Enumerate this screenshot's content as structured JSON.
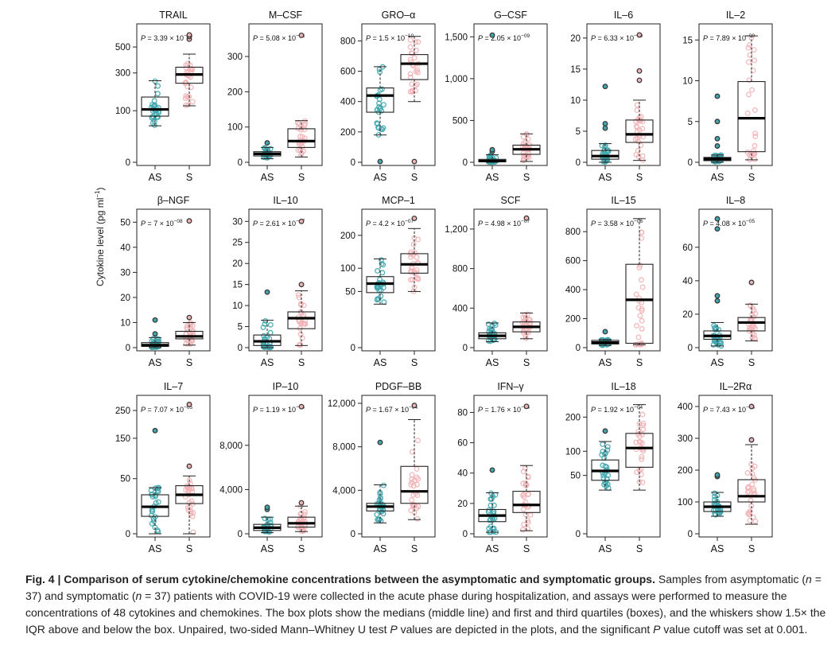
{
  "figure": {
    "ylabel": "Cytokine level (pg ml",
    "ylabel_sup": "−1",
    "ylabel_close": ")",
    "groups": [
      "AS",
      "S"
    ],
    "colors": {
      "AS": "#3ea6ad",
      "S": "#f2b3b6"
    },
    "caption": {
      "fig_label": "Fig. 4 | Comparison of serum cytokine/chemokine concentrations between the asymptomatic and symptomatic groups.",
      "part1": " Samples from asymptomatic (",
      "n_as": "n",
      "eq_as": " = 37) and symptomatic (",
      "n_s": "n",
      "eq_s": " = 37) patients with COVID-19 were collected in the acute phase during hospitalization, and assays were performed to measure the concentrations of 48 cytokines and chemokines. The box plots show the medians (middle line) and first and third quartiles (boxes), and the whiskers show 1.5× the IQR above and below the box. Unpaired, two-sided Mann–Whitney U test ",
      "p1": "P",
      "part2": " values are depicted in the plots, and the significant ",
      "p2": "P",
      "part3": " value cutoff was set at 0.001."
    }
  },
  "chart_data": [
    {
      "type": "box",
      "title": "TRAIL",
      "pval": "P = 3.39 × 10",
      "pexp": "−14",
      "scale": "sqrt",
      "ylim": [
        0,
        640
      ],
      "yticks": [
        0,
        100,
        300,
        500
      ],
      "ytick_labels": [
        "0",
        "100",
        "300",
        "500"
      ],
      "AS": {
        "q1": 80,
        "median": 105,
        "q3": 160,
        "wlo": 50,
        "whi": 250,
        "out": []
      },
      "S": {
        "q1": 235,
        "median": 290,
        "q3": 340,
        "wlo": 120,
        "whi": 440,
        "out": [
          570,
          595,
          610
        ]
      }
    },
    {
      "type": "box",
      "title": "M–CSF",
      "pval": "P = 5.08 × 10",
      "pexp": "−13",
      "scale": "linear",
      "ylim": [
        0,
        370
      ],
      "yticks": [
        0,
        100,
        200,
        300
      ],
      "ytick_labels": [
        "0",
        "100",
        "200",
        "300"
      ],
      "AS": {
        "q1": 18,
        "median": 24,
        "q3": 30,
        "wlo": 10,
        "whi": 42,
        "out": [
          55
        ]
      },
      "S": {
        "q1": 42,
        "median": 60,
        "q3": 95,
        "wlo": 15,
        "whi": 118,
        "out": [
          360
        ]
      }
    },
    {
      "type": "box",
      "title": "GRO–α",
      "pval": "P = 1.5 × 10",
      "pexp": "−10",
      "scale": "linear",
      "ylim": [
        0,
        860
      ],
      "yticks": [
        0,
        200,
        400,
        600,
        800
      ],
      "ytick_labels": [
        "0",
        "200",
        "400",
        "600",
        "800"
      ],
      "AS": {
        "q1": 330,
        "median": 440,
        "q3": 490,
        "wlo": 180,
        "whi": 630,
        "out": [
          5
        ]
      },
      "S": {
        "q1": 545,
        "median": 650,
        "q3": 710,
        "wlo": 400,
        "whi": 830,
        "out": [
          5
        ]
      }
    },
    {
      "type": "box",
      "title": "G–CSF",
      "pval": "P = 2.05 × 10",
      "pexp": "−09",
      "scale": "linear",
      "ylim": [
        0,
        1560
      ],
      "yticks": [
        0,
        500,
        1000,
        1500
      ],
      "ytick_labels": [
        "0",
        "500",
        "1,000",
        "1,500"
      ],
      "AS": {
        "q1": 5,
        "median": 15,
        "q3": 35,
        "wlo": 0,
        "whi": 90,
        "out": [
          130,
          150,
          1520
        ]
      },
      "S": {
        "q1": 95,
        "median": 155,
        "q3": 205,
        "wlo": 10,
        "whi": 340,
        "out": []
      }
    },
    {
      "type": "box",
      "title": "IL–6",
      "pval": "P = 6.33 × 10",
      "pexp": "−09",
      "scale": "linear",
      "ylim": [
        0,
        21
      ],
      "yticks": [
        0,
        5,
        10,
        15,
        20
      ],
      "ytick_labels": [
        "0",
        "5",
        "10",
        "15",
        "20"
      ],
      "AS": {
        "q1": 0.5,
        "median": 1.0,
        "q3": 1.9,
        "wlo": 0,
        "whi": 3.0,
        "out": [
          5.5,
          6.2,
          12.2
        ]
      },
      "S": {
        "q1": 3.2,
        "median": 4.5,
        "q3": 6.8,
        "wlo": 0.3,
        "whi": 10,
        "out": [
          13.2,
          14.7,
          20.5
        ]
      }
    },
    {
      "type": "box",
      "title": "IL–2",
      "pval": "P = 7.89 × 10",
      "pexp": "−09",
      "scale": "linear",
      "ylim": [
        0,
        16
      ],
      "yticks": [
        0,
        5,
        10,
        15
      ],
      "ytick_labels": [
        "0",
        "5",
        "10",
        "15"
      ],
      "AS": {
        "q1": 0.2,
        "median": 0.4,
        "q3": 0.6,
        "wlo": 0,
        "whi": 0.9,
        "out": [
          2.0,
          2.9,
          5.0,
          8.1
        ]
      },
      "S": {
        "q1": 1.3,
        "median": 5.4,
        "q3": 9.9,
        "wlo": 0.3,
        "whi": 15.5,
        "out": []
      }
    },
    {
      "type": "box",
      "title": "β–NGF",
      "pval": "P = 7 × 10",
      "pexp": "−08",
      "scale": "linear",
      "ylim": [
        0,
        52
      ],
      "yticks": [
        0,
        10,
        20,
        30,
        40,
        50
      ],
      "ytick_labels": [
        "0",
        "10",
        "20",
        "30",
        "40",
        "50"
      ],
      "AS": {
        "q1": 0.5,
        "median": 1,
        "q3": 2,
        "wlo": 0,
        "whi": 4,
        "out": [
          5.5,
          11
        ]
      },
      "S": {
        "q1": 3.5,
        "median": 4.5,
        "q3": 6.5,
        "wlo": 1,
        "whi": 10,
        "out": [
          12,
          50.5
        ]
      }
    },
    {
      "type": "box",
      "title": "IL–10",
      "pval": "P = 2.61 × 10",
      "pexp": "−07",
      "scale": "linear",
      "ylim": [
        0,
        31
      ],
      "yticks": [
        0,
        5,
        10,
        15,
        20,
        25,
        30
      ],
      "ytick_labels": [
        "0",
        "5",
        "10",
        "15",
        "20",
        "25",
        "30"
      ],
      "AS": {
        "q1": 0.5,
        "median": 1.5,
        "q3": 3,
        "wlo": 0,
        "whi": 6.5,
        "out": [
          13.2
        ]
      },
      "S": {
        "q1": 4.5,
        "median": 7,
        "q3": 8.5,
        "wlo": 0.5,
        "whi": 13.5,
        "out": [
          15,
          30
        ]
      }
    },
    {
      "type": "box",
      "title": "MCP–1",
      "pval": "P = 4.2 × 10",
      "pexp": "−07",
      "scale": "sqrt",
      "ylim": [
        0,
        270
      ],
      "yticks": [
        0,
        50,
        100,
        200
      ],
      "ytick_labels": [
        "0",
        "50",
        "100",
        "200"
      ],
      "AS": {
        "q1": 48,
        "median": 65,
        "q3": 80,
        "wlo": 30,
        "whi": 125,
        "out": []
      },
      "S": {
        "q1": 88,
        "median": 110,
        "q3": 140,
        "wlo": 50,
        "whi": 225,
        "out": [
          265
        ]
      }
    },
    {
      "type": "box",
      "title": "SCF",
      "pval": "P = 4.98 × 10",
      "pexp": "−07",
      "scale": "linear",
      "ylim": [
        0,
        1320
      ],
      "yticks": [
        0,
        400,
        800,
        1200
      ],
      "ytick_labels": [
        "0",
        "400",
        "800",
        "1,200"
      ],
      "AS": {
        "q1": 90,
        "median": 120,
        "q3": 150,
        "wlo": 60,
        "whi": 250,
        "out": []
      },
      "S": {
        "q1": 160,
        "median": 210,
        "q3": 260,
        "wlo": 90,
        "whi": 350,
        "out": [
          1310
        ]
      }
    },
    {
      "type": "box",
      "title": "IL–15",
      "pval": "P = 3.58 × 10",
      "pexp": "−06",
      "scale": "linear",
      "ylim": [
        0,
        900
      ],
      "yticks": [
        0,
        200,
        400,
        600,
        800
      ],
      "ytick_labels": [
        "0",
        "200",
        "400",
        "600",
        "800"
      ],
      "AS": {
        "q1": 25,
        "median": 35,
        "q3": 50,
        "wlo": 15,
        "whi": 55,
        "out": [
          110
        ]
      },
      "S": {
        "q1": 30,
        "median": 330,
        "q3": 575,
        "wlo": 20,
        "whi": 890,
        "out": []
      }
    },
    {
      "type": "box",
      "title": "IL–8",
      "pval": "P = 4.08 × 10",
      "pexp": "−05",
      "scale": "linear",
      "ylim": [
        0,
        78
      ],
      "yticks": [
        0,
        20,
        40,
        60
      ],
      "ytick_labels": [
        "0",
        "20",
        "40",
        "60"
      ],
      "AS": {
        "q1": 5,
        "median": 7,
        "q3": 10,
        "wlo": 1,
        "whi": 15,
        "out": [
          28,
          31,
          71,
          77
        ]
      },
      "S": {
        "q1": 10,
        "median": 15,
        "q3": 18,
        "wlo": 4,
        "whi": 26,
        "out": [
          39
        ]
      }
    },
    {
      "type": "box",
      "title": "IL–7",
      "pval": "P = 7.07 × 10",
      "pexp": "−05",
      "scale": "sqrt",
      "ylim": [
        0,
        280
      ],
      "yticks": [
        0,
        50,
        150,
        250
      ],
      "ytick_labels": [
        "0",
        "50",
        "150",
        "250"
      ],
      "AS": {
        "q1": 5,
        "median": 12,
        "q3": 25,
        "wlo": 0,
        "whi": 35,
        "out": [
          175
        ]
      },
      "S": {
        "q1": 15,
        "median": 25,
        "q3": 38,
        "wlo": 0,
        "whi": 55,
        "out": [
          75,
          275
        ]
      }
    },
    {
      "type": "box",
      "title": "IP–10",
      "pval": "P = 1.19 × 10",
      "pexp": "−04",
      "scale": "linear",
      "ylim": [
        0,
        11800
      ],
      "yticks": [
        0,
        4000,
        8000
      ],
      "ytick_labels": [
        "0",
        "4,000",
        "8,000"
      ],
      "AS": {
        "q1": 300,
        "median": 550,
        "q3": 850,
        "wlo": 100,
        "whi": 1500,
        "out": [
          2200,
          2400
        ]
      },
      "S": {
        "q1": 600,
        "median": 950,
        "q3": 1500,
        "wlo": 200,
        "whi": 2500,
        "out": [
          2800,
          11500
        ]
      }
    },
    {
      "type": "box",
      "title": "PDGF–BB",
      "pval": "P = 1.67 × 10",
      "pexp": "−04",
      "scale": "linear",
      "ylim": [
        0,
        12000
      ],
      "yticks": [
        0,
        4000,
        8000,
        12000
      ],
      "ytick_labels": [
        "0",
        "4,000",
        "8,000",
        "12,000"
      ],
      "AS": {
        "q1": 2100,
        "median": 2500,
        "q3": 2800,
        "wlo": 1000,
        "whi": 4500,
        "out": [
          8400
        ]
      },
      "S": {
        "q1": 2800,
        "median": 3900,
        "q3": 6200,
        "wlo": 1300,
        "whi": 10500,
        "out": [
          11800
        ]
      }
    },
    {
      "type": "box",
      "title": "IFN–γ",
      "pval": "P = 1.76 × 10",
      "pexp": "−04",
      "scale": "linear",
      "ylim": [
        0,
        86
      ],
      "yticks": [
        0,
        20,
        40,
        60,
        80
      ],
      "ytick_labels": [
        "0",
        "20",
        "40",
        "60",
        "80"
      ],
      "AS": {
        "q1": 8,
        "median": 12,
        "q3": 16,
        "wlo": 1,
        "whi": 27,
        "out": [
          42
        ]
      },
      "S": {
        "q1": 14,
        "median": 19,
        "q3": 28,
        "wlo": 2,
        "whi": 45,
        "out": [
          84
        ]
      }
    },
    {
      "type": "box",
      "title": "IL–18",
      "pval": "P = 1.92 × 10",
      "pexp": "−04",
      "scale": "sqrt",
      "ylim": [
        0,
        250
      ],
      "yticks": [
        0,
        50,
        100,
        200
      ],
      "ytick_labels": [
        "0",
        "50",
        "100",
        "200"
      ],
      "AS": {
        "q1": 42,
        "median": 58,
        "q3": 80,
        "wlo": 28,
        "whi": 125,
        "out": [
          155
        ]
      },
      "S": {
        "q1": 65,
        "median": 108,
        "q3": 148,
        "wlo": 28,
        "whi": 245,
        "out": []
      }
    },
    {
      "type": "box",
      "title": "IL–2Rα",
      "pval": "P = 7.43 × 10",
      "pexp": "−04",
      "scale": "linear",
      "ylim": [
        0,
        410
      ],
      "yticks": [
        0,
        100,
        200,
        300,
        400
      ],
      "ytick_labels": [
        "0",
        "100",
        "200",
        "300",
        "400"
      ],
      "AS": {
        "q1": 70,
        "median": 85,
        "q3": 100,
        "wlo": 55,
        "whi": 130,
        "out": [
          180,
          185
        ]
      },
      "S": {
        "q1": 100,
        "median": 118,
        "q3": 170,
        "wlo": 30,
        "whi": 280,
        "out": [
          295,
          400
        ]
      }
    }
  ]
}
